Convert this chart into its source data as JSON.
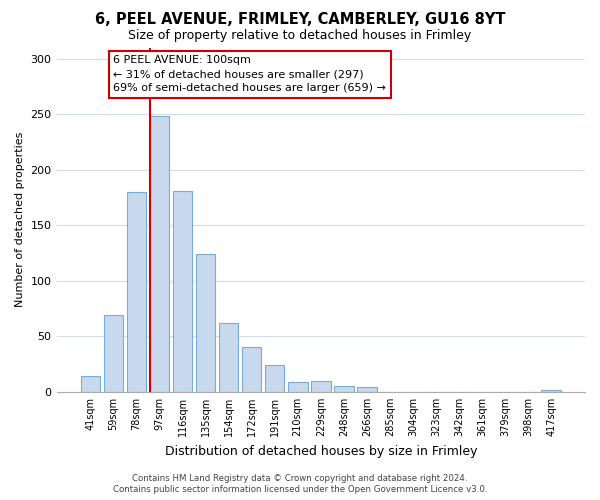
{
  "title": "6, PEEL AVENUE, FRIMLEY, CAMBERLEY, GU16 8YT",
  "subtitle": "Size of property relative to detached houses in Frimley",
  "xlabel": "Distribution of detached houses by size in Frimley",
  "ylabel": "Number of detached properties",
  "bin_labels": [
    "41sqm",
    "59sqm",
    "78sqm",
    "97sqm",
    "116sqm",
    "135sqm",
    "154sqm",
    "172sqm",
    "191sqm",
    "210sqm",
    "229sqm",
    "248sqm",
    "266sqm",
    "285sqm",
    "304sqm",
    "323sqm",
    "342sqm",
    "361sqm",
    "379sqm",
    "398sqm",
    "417sqm"
  ],
  "bar_heights": [
    14,
    69,
    180,
    248,
    181,
    124,
    62,
    40,
    24,
    9,
    10,
    5,
    4,
    0,
    0,
    0,
    0,
    0,
    0,
    0,
    2
  ],
  "bar_color": "#c8d8ed",
  "bar_edge_color": "#7aadd4",
  "vline_x": 3.0,
  "vline_color": "#cc0000",
  "annotation_line1": "6 PEEL AVENUE: 100sqm",
  "annotation_line2": "← 31% of detached houses are smaller (297)",
  "annotation_line3": "69% of semi-detached houses are larger (659) →",
  "annotation_box_edge_color": "#cc0000",
  "ylim": [
    0,
    310
  ],
  "yticks": [
    0,
    50,
    100,
    150,
    200,
    250,
    300
  ],
  "footer_line1": "Contains HM Land Registry data © Crown copyright and database right 2024.",
  "footer_line2": "Contains public sector information licensed under the Open Government Licence v3.0.",
  "background_color": "#ffffff",
  "grid_color": "#d0dce8"
}
